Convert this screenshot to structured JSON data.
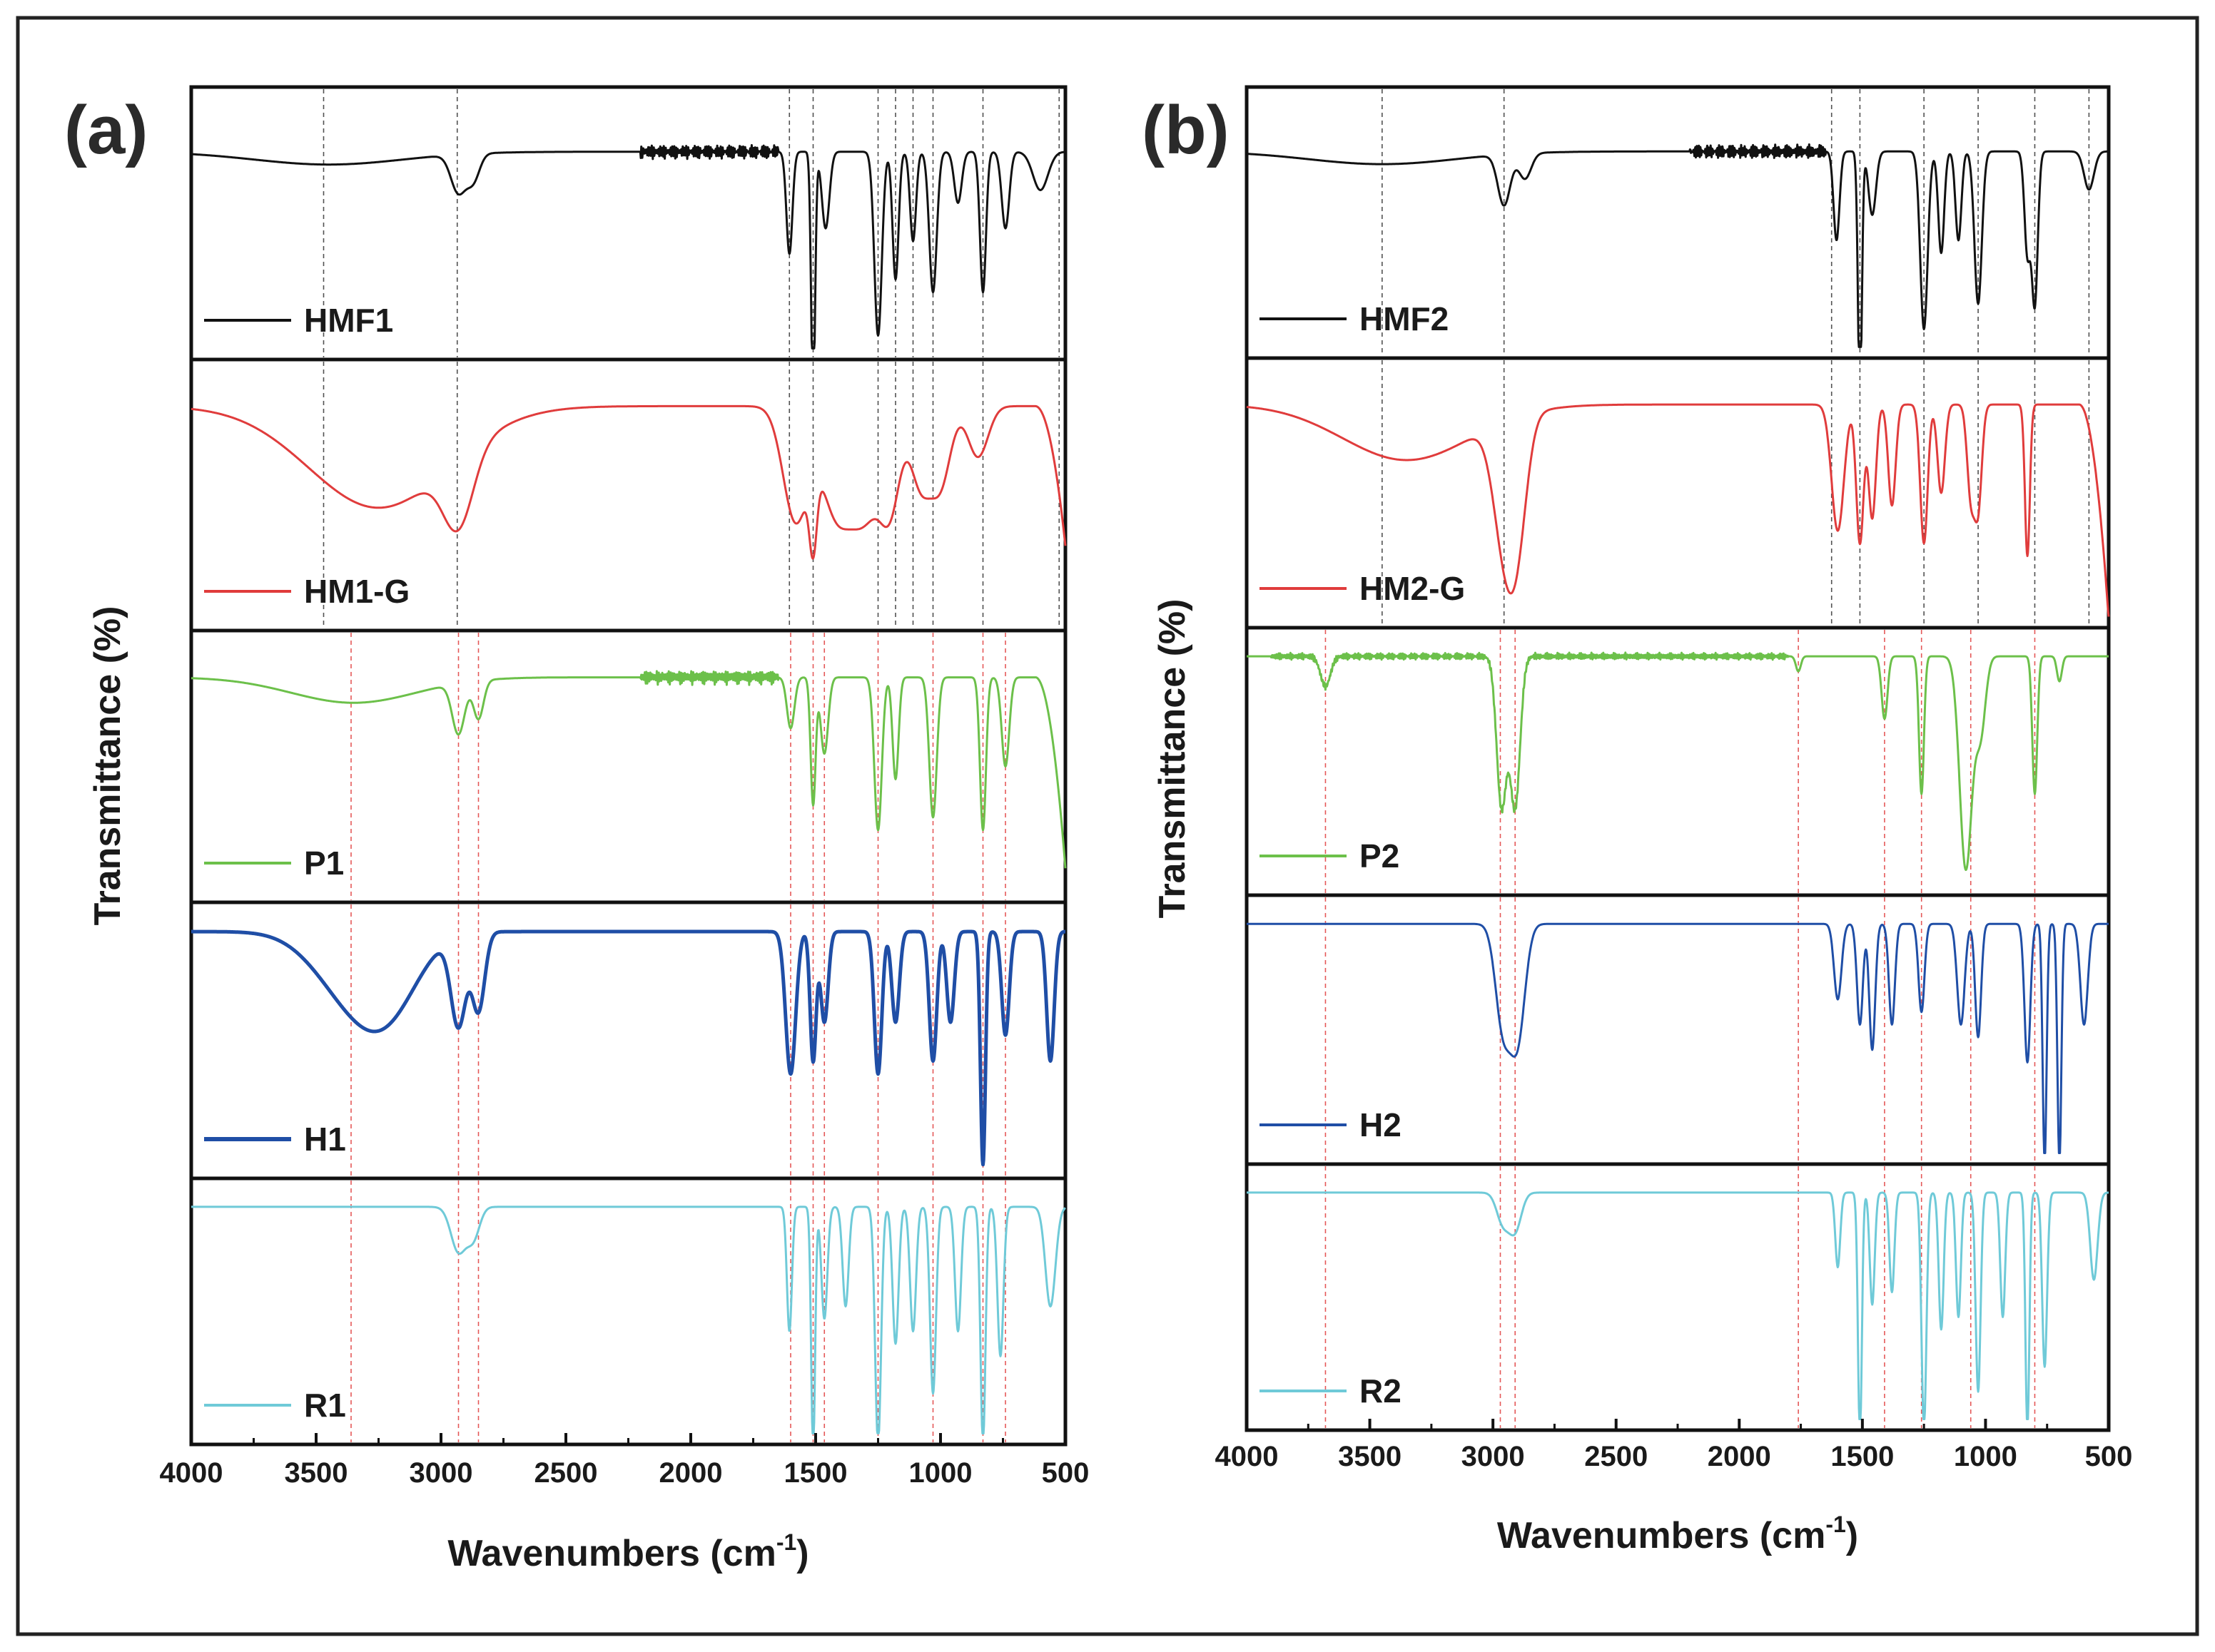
{
  "chart_data": [
    {
      "type": "line",
      "panel_label": "(a)",
      "xlabel": "Wavenumbers (cm",
      "xlabel_sup": "-1",
      "xlabel_close": ")",
      "ylabel": "Transmittance (%)",
      "xlim": [
        4000,
        500
      ],
      "xticks": [
        4000,
        3500,
        3000,
        2500,
        2000,
        1500,
        1000,
        500
      ],
      "grid": false,
      "legend": "inline in each stacked subplot, lower-left",
      "black_reference_lines": [
        3470,
        2935,
        1605,
        1510,
        1250,
        1180,
        1110,
        1030,
        830,
        525
      ],
      "red_reference_lines": [
        3360,
        2930,
        2850,
        1600,
        1510,
        1465,
        1250,
        1030,
        830,
        740
      ],
      "series": [
        {
          "name": "HMF1",
          "color": "#111111",
          "stroke": 3,
          "baseline": 0.78,
          "features": [
            [
              3450,
              300,
              0.05
            ],
            [
              2930,
              30,
              0.15
            ],
            [
              2870,
              25,
              0.1
            ],
            [
              1605,
              12,
              0.4
            ],
            [
              1510,
              8,
              0.98
            ],
            [
              1460,
              15,
              0.3
            ],
            [
              1250,
              15,
              0.72
            ],
            [
              1180,
              12,
              0.5
            ],
            [
              1110,
              12,
              0.35
            ],
            [
              1030,
              15,
              0.55
            ],
            [
              930,
              15,
              0.2
            ],
            [
              830,
              12,
              0.55
            ],
            [
              740,
              15,
              0.3
            ],
            [
              600,
              30,
              0.15
            ]
          ],
          "noise": [
            [
              2200,
              1650,
              0.03
            ]
          ],
          "end_drop": 0
        },
        {
          "name": "HM1-G",
          "color": "#e03c3c",
          "stroke": 3,
          "baseline": 0.85,
          "features": [
            [
              3250,
              280,
              0.4
            ],
            [
              2930,
              60,
              0.28
            ],
            [
              1580,
              50,
              0.45
            ],
            [
              1510,
              15,
              0.3
            ],
            [
              1420,
              60,
              0.4
            ],
            [
              1300,
              60,
              0.4
            ],
            [
              1200,
              40,
              0.35
            ],
            [
              1080,
              40,
              0.3
            ],
            [
              1000,
              40,
              0.3
            ],
            [
              850,
              40,
              0.2
            ]
          ],
          "noise": [],
          "end_drop": 0.55
        },
        {
          "name": "P1",
          "color": "#6cc04a",
          "stroke": 3,
          "baseline": 0.85,
          "features": [
            [
              3350,
              250,
              0.1
            ],
            [
              2930,
              25,
              0.2
            ],
            [
              2850,
              20,
              0.15
            ],
            [
              1600,
              15,
              0.2
            ],
            [
              1510,
              10,
              0.5
            ],
            [
              1465,
              15,
              0.3
            ],
            [
              1250,
              15,
              0.6
            ],
            [
              1180,
              12,
              0.4
            ],
            [
              1030,
              15,
              0.55
            ],
            [
              830,
              12,
              0.6
            ],
            [
              740,
              15,
              0.35
            ]
          ],
          "noise": [
            [
              2200,
              1650,
              0.03
            ]
          ],
          "end_drop": 0.75
        },
        {
          "name": "H1",
          "color": "#1f4ea6",
          "stroke": 5,
          "baseline": 0.92,
          "features": [
            [
              3350,
              150,
              0.25
            ],
            [
              3200,
              120,
              0.2
            ],
            [
              2930,
              30,
              0.35
            ],
            [
              2850,
              25,
              0.3
            ],
            [
              1600,
              20,
              0.55
            ],
            [
              1510,
              12,
              0.5
            ],
            [
              1465,
              15,
              0.35
            ],
            [
              1250,
              15,
              0.55
            ],
            [
              1180,
              15,
              0.35
            ],
            [
              1030,
              15,
              0.5
            ],
            [
              960,
              15,
              0.35
            ],
            [
              830,
              10,
              0.9
            ],
            [
              740,
              15,
              0.4
            ],
            [
              560,
              15,
              0.5
            ]
          ],
          "noise": [],
          "end_drop": 0
        },
        {
          "name": "R1",
          "color": "#6fcad8",
          "stroke": 3,
          "baseline": 0.92,
          "features": [
            [
              2930,
              30,
              0.18
            ],
            [
              2870,
              25,
              0.12
            ],
            [
              1605,
              10,
              0.5
            ],
            [
              1510,
              8,
              0.98
            ],
            [
              1465,
              12,
              0.45
            ],
            [
              1380,
              12,
              0.4
            ],
            [
              1250,
              12,
              0.95
            ],
            [
              1180,
              12,
              0.55
            ],
            [
              1110,
              12,
              0.5
            ],
            [
              1030,
              12,
              0.75
            ],
            [
              930,
              12,
              0.5
            ],
            [
              830,
              10,
              0.95
            ],
            [
              760,
              12,
              0.6
            ],
            [
              560,
              20,
              0.4
            ]
          ],
          "noise": [],
          "end_drop": 0
        }
      ]
    },
    {
      "type": "line",
      "panel_label": "(b)",
      "xlabel": "Wavenumbers (cm",
      "xlabel_sup": "-1",
      "xlabel_close": ")",
      "ylabel": "Transmittance (%)",
      "xlim": [
        4000,
        500
      ],
      "xticks": [
        4000,
        3500,
        3000,
        2500,
        2000,
        1500,
        1000,
        500
      ],
      "grid": false,
      "legend": "inline in each stacked subplot, lower-left",
      "black_reference_lines": [
        3450,
        2955,
        1625,
        1510,
        1250,
        1030,
        800,
        580
      ],
      "red_reference_lines": [
        3680,
        2970,
        2910,
        1760,
        1410,
        1260,
        1060,
        800
      ],
      "series": [
        {
          "name": "HMF2",
          "color": "#111111",
          "stroke": 3,
          "baseline": 0.78,
          "features": [
            [
              3450,
              300,
              0.05
            ],
            [
              2955,
              25,
              0.2
            ],
            [
              2870,
              25,
              0.1
            ],
            [
              1605,
              12,
              0.35
            ],
            [
              1510,
              8,
              0.98
            ],
            [
              1460,
              15,
              0.25
            ],
            [
              1250,
              15,
              0.7
            ],
            [
              1180,
              12,
              0.4
            ],
            [
              1110,
              12,
              0.35
            ],
            [
              1030,
              15,
              0.6
            ],
            [
              830,
              12,
              0.4
            ],
            [
              800,
              12,
              0.6
            ],
            [
              580,
              20,
              0.15
            ]
          ],
          "noise": [
            [
              2200,
              1650,
              0.03
            ]
          ],
          "end_drop": 0
        },
        {
          "name": "HM2-G",
          "color": "#e03c3c",
          "stroke": 3,
          "baseline": 0.85,
          "features": [
            [
              3350,
              260,
              0.22
            ],
            [
              2955,
              45,
              0.45
            ],
            [
              2900,
              40,
              0.4
            ],
            [
              1600,
              25,
              0.5
            ],
            [
              1510,
              15,
              0.55
            ],
            [
              1460,
              15,
              0.45
            ],
            [
              1380,
              15,
              0.4
            ],
            [
              1250,
              15,
              0.55
            ],
            [
              1180,
              15,
              0.35
            ],
            [
              1060,
              15,
              0.35
            ],
            [
              1030,
              15,
              0.4
            ],
            [
              830,
              10,
              0.6
            ]
          ],
          "noise": [],
          "end_drop": 0.85
        },
        {
          "name": "P2",
          "color": "#6cc04a",
          "stroke": 3,
          "baseline": 0.92,
          "features": [
            [
              3680,
              20,
              0.12
            ],
            [
              2965,
              20,
              0.6
            ],
            [
              2910,
              20,
              0.6
            ],
            [
              1760,
              10,
              0.06
            ],
            [
              1410,
              12,
              0.25
            ],
            [
              1260,
              10,
              0.55
            ],
            [
              1080,
              25,
              0.85
            ],
            [
              1020,
              20,
              0.3
            ],
            [
              800,
              10,
              0.55
            ],
            [
              700,
              10,
              0.1
            ]
          ],
          "noise": [
            [
              3900,
              1800,
              0.015
            ]
          ],
          "end_drop": 0
        },
        {
          "name": "H2",
          "color": "#1f4ea6",
          "stroke": 3,
          "baseline": 0.92,
          "features": [
            [
              2960,
              30,
              0.4
            ],
            [
              2900,
              30,
              0.45
            ],
            [
              1600,
              15,
              0.3
            ],
            [
              1510,
              12,
              0.4
            ],
            [
              1460,
              12,
              0.5
            ],
            [
              1380,
              12,
              0.4
            ],
            [
              1260,
              12,
              0.35
            ],
            [
              1100,
              15,
              0.4
            ],
            [
              1030,
              12,
              0.45
            ],
            [
              830,
              12,
              0.55
            ],
            [
              760,
              8,
              0.95
            ],
            [
              700,
              8,
              0.95
            ],
            [
              600,
              15,
              0.4
            ]
          ],
          "noise": [],
          "end_drop": 0
        },
        {
          "name": "R2",
          "color": "#6fcad8",
          "stroke": 3,
          "baseline": 0.92,
          "features": [
            [
              2960,
              25,
              0.12
            ],
            [
              2910,
              25,
              0.15
            ],
            [
              1600,
              10,
              0.3
            ],
            [
              1510,
              8,
              0.98
            ],
            [
              1460,
              10,
              0.45
            ],
            [
              1380,
              10,
              0.4
            ],
            [
              1250,
              10,
              0.95
            ],
            [
              1180,
              10,
              0.55
            ],
            [
              1110,
              10,
              0.5
            ],
            [
              1030,
              10,
              0.8
            ],
            [
              930,
              10,
              0.5
            ],
            [
              830,
              8,
              0.95
            ],
            [
              760,
              10,
              0.7
            ],
            [
              560,
              15,
              0.35
            ]
          ],
          "noise": [],
          "end_drop": 0
        }
      ]
    }
  ]
}
